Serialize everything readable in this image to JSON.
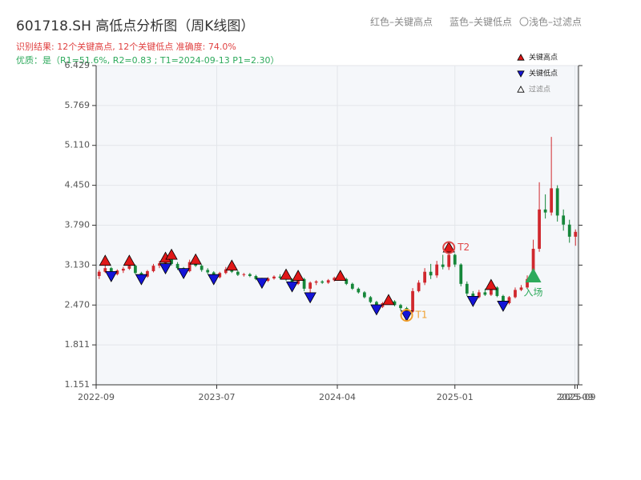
{
  "chart_data": {
    "type": "candlestick",
    "title": "601718.SH 高低点分析图（周K线图）",
    "result_text": "识别结果: 12个关键高点, 12个关键低点   准确度: 74.0%",
    "quality_text": "优质：是（R1=51.6%, R2=0.83 ; T1=2024-09-13 P1=2.30）",
    "header_legend": [
      "红色–关键高点",
      "蓝色–关键低点",
      "〇浅色–过滤点"
    ],
    "up_color": "#d0282e",
    "down_color": "#16873a",
    "grid": true,
    "legend_position": "upper right",
    "xlim": [
      0,
      80
    ],
    "ylim": [
      1.151,
      6.429
    ],
    "xticks": [
      {
        "value": 0,
        "label": "2022-09"
      },
      {
        "value": 20,
        "label": "2023-07"
      },
      {
        "value": 40,
        "label": "2024-04"
      },
      {
        "value": 59.5,
        "label": "2025-01"
      },
      {
        "value": 79.4,
        "label": "2025-09"
      },
      {
        "value": 79.8,
        "label": "2025-09"
      }
    ],
    "yticks": [
      1.151,
      1.811,
      {
        "value": 2.47,
        "label": "2.470"
      },
      {
        "value": 3.13,
        "label": "3.130"
      },
      {
        "value": 3.79,
        "label": "3.790"
      },
      {
        "value": 4.45,
        "label": "4.450"
      },
      {
        "value": 5.11,
        "label": "5.110"
      },
      5.769,
      6.429
    ],
    "candles": [
      [
        2.95,
        3.05,
        2.9,
        3.02
      ],
      [
        3.02,
        3.15,
        3.0,
        3.08
      ],
      [
        3.08,
        3.1,
        2.95,
        2.98
      ],
      [
        2.98,
        3.06,
        2.96,
        3.04
      ],
      [
        3.04,
        3.1,
        3.0,
        3.07
      ],
      [
        3.07,
        3.18,
        3.05,
        3.12
      ],
      [
        3.12,
        3.14,
        2.98,
        3.0
      ],
      [
        3.0,
        3.02,
        2.9,
        2.94
      ],
      [
        2.94,
        3.05,
        2.92,
        3.03
      ],
      [
        3.03,
        3.15,
        3.01,
        3.12
      ],
      [
        3.12,
        3.2,
        3.08,
        3.16
      ],
      [
        3.16,
        3.28,
        3.08,
        3.22
      ],
      [
        3.22,
        3.32,
        3.12,
        3.15
      ],
      [
        3.15,
        3.18,
        3.05,
        3.08
      ],
      [
        3.08,
        3.1,
        3.0,
        3.03
      ],
      [
        3.03,
        3.22,
        3.01,
        3.18
      ],
      [
        3.18,
        3.24,
        3.1,
        3.12
      ],
      [
        3.12,
        3.14,
        3.02,
        3.05
      ],
      [
        3.05,
        3.08,
        2.98,
        3.01
      ],
      [
        3.01,
        3.03,
        2.9,
        2.93
      ],
      [
        2.93,
        3.02,
        2.91,
        3.0
      ],
      [
        3.0,
        3.1,
        2.98,
        3.06
      ],
      [
        3.06,
        3.12,
        3.0,
        3.02
      ],
      [
        3.02,
        3.04,
        2.95,
        2.97
      ],
      [
        2.97,
        3.0,
        2.94,
        2.98
      ],
      [
        2.98,
        3.0,
        2.93,
        2.95
      ],
      [
        2.95,
        2.97,
        2.88,
        2.9
      ],
      [
        2.9,
        2.92,
        2.84,
        2.87
      ],
      [
        2.87,
        2.93,
        2.85,
        2.91
      ],
      [
        2.91,
        2.96,
        2.89,
        2.94
      ],
      [
        2.94,
        2.98,
        2.9,
        2.92
      ],
      [
        2.92,
        2.97,
        2.87,
        2.89
      ],
      [
        2.89,
        2.91,
        2.78,
        2.82
      ],
      [
        2.82,
        2.94,
        2.8,
        2.9
      ],
      [
        2.9,
        2.92,
        2.7,
        2.74
      ],
      [
        2.74,
        2.86,
        2.6,
        2.84
      ],
      [
        2.84,
        2.88,
        2.8,
        2.86
      ],
      [
        2.86,
        2.88,
        2.82,
        2.84
      ],
      [
        2.84,
        2.9,
        2.82,
        2.88
      ],
      [
        2.88,
        2.94,
        2.86,
        2.92
      ],
      [
        2.92,
        2.98,
        2.88,
        2.9
      ],
      [
        2.9,
        2.92,
        2.8,
        2.82
      ],
      [
        2.82,
        2.84,
        2.72,
        2.74
      ],
      [
        2.74,
        2.76,
        2.66,
        2.68
      ],
      [
        2.68,
        2.7,
        2.58,
        2.6
      ],
      [
        2.6,
        2.62,
        2.5,
        2.52
      ],
      [
        2.52,
        2.54,
        2.4,
        2.44
      ],
      [
        2.44,
        2.52,
        2.42,
        2.5
      ],
      [
        2.5,
        2.58,
        2.48,
        2.53
      ],
      [
        2.53,
        2.55,
        2.45,
        2.47
      ],
      [
        2.47,
        2.49,
        2.38,
        2.42
      ],
      [
        2.42,
        2.44,
        2.3,
        2.36
      ],
      [
        2.36,
        2.75,
        2.34,
        2.7
      ],
      [
        2.7,
        2.88,
        2.68,
        2.84
      ],
      [
        2.84,
        3.08,
        2.8,
        3.02
      ],
      [
        3.02,
        3.15,
        2.9,
        2.96
      ],
      [
        2.96,
        3.2,
        2.92,
        3.14
      ],
      [
        3.14,
        3.3,
        3.06,
        3.1
      ],
      [
        3.1,
        3.42,
        3.05,
        3.3
      ],
      [
        3.3,
        3.32,
        3.1,
        3.14
      ],
      [
        3.14,
        3.16,
        2.78,
        2.82
      ],
      [
        2.82,
        2.86,
        2.62,
        2.66
      ],
      [
        2.66,
        2.7,
        2.54,
        2.6
      ],
      [
        2.6,
        2.72,
        2.58,
        2.68
      ],
      [
        2.68,
        2.74,
        2.62,
        2.64
      ],
      [
        2.64,
        2.8,
        2.62,
        2.76
      ],
      [
        2.76,
        2.78,
        2.6,
        2.62
      ],
      [
        2.62,
        2.64,
        2.46,
        2.5
      ],
      [
        2.5,
        2.62,
        2.48,
        2.6
      ],
      [
        2.6,
        2.76,
        2.58,
        2.72
      ],
      [
        2.72,
        2.8,
        2.7,
        2.76
      ],
      [
        2.76,
        2.96,
        2.74,
        2.9
      ],
      [
        2.9,
        3.55,
        2.88,
        3.4
      ],
      [
        3.4,
        4.5,
        3.35,
        4.05
      ],
      [
        4.05,
        4.3,
        3.9,
        4.0
      ],
      [
        4.0,
        5.25,
        3.95,
        4.4
      ],
      [
        4.4,
        4.45,
        3.85,
        3.95
      ],
      [
        3.95,
        4.05,
        3.7,
        3.8
      ],
      [
        3.8,
        3.88,
        3.5,
        3.6
      ],
      [
        3.6,
        3.72,
        3.45,
        3.68
      ]
    ],
    "markers": [
      {
        "name": "关键高点",
        "color": "#e01818",
        "direction": "up",
        "x": [
          1,
          5,
          11,
          12,
          16,
          22,
          31,
          33,
          40,
          48,
          58,
          65
        ],
        "values": [
          3.2,
          3.2,
          3.25,
          3.3,
          3.22,
          3.12,
          2.97,
          2.95,
          2.95,
          2.55,
          3.42,
          2.8
        ]
      },
      {
        "name": "关键低点",
        "color": "#1414d8",
        "direction": "down",
        "x": [
          2,
          7,
          11,
          14,
          19,
          27,
          32,
          35,
          46,
          51,
          62,
          67
        ],
        "values": [
          2.95,
          2.9,
          3.08,
          3.0,
          2.9,
          2.84,
          2.78,
          2.6,
          2.4,
          2.3,
          2.54,
          2.46
        ]
      },
      {
        "name": "过滤点",
        "color": "#ffffff",
        "direction": "up",
        "x": [],
        "values": []
      }
    ],
    "annotations": [
      {
        "text": "T1",
        "x": 51,
        "value": 2.3,
        "color": "#f0a030",
        "marker": "circle"
      },
      {
        "text": "T2",
        "x": 58,
        "value": 3.42,
        "color": "#e04848",
        "marker": "circle"
      },
      {
        "text": "入场",
        "x": 72,
        "value": 2.95,
        "color": "#2eaa5c",
        "marker": "triangle"
      }
    ]
  }
}
